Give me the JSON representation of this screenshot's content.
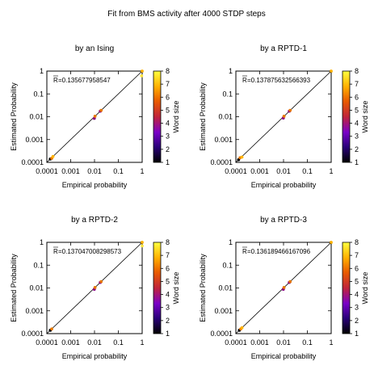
{
  "figure_title": "Fit from BMS activity after 4000 STDP steps",
  "chart_data": [
    {
      "type": "scatter",
      "title": "by an Ising",
      "xlabel": "Empirical probability",
      "ylabel": "Estimated Probability",
      "xscale": "log",
      "yscale": "log",
      "xlim": [
        0.0001,
        1
      ],
      "ylim": [
        0.0001,
        1
      ],
      "xticks": [
        "0.0001",
        "0.001",
        "0.01",
        "0.1",
        "1"
      ],
      "yticks": [
        "0.0001",
        "0.001",
        "0.01",
        "0.1",
        "1"
      ],
      "annotation_prefix": "R",
      "annotation_value": "=0.135677958547",
      "colorbar": {
        "label": "Word size",
        "min": 1,
        "max": 8,
        "ticks": [
          "1",
          "2",
          "3",
          "4",
          "5",
          "6",
          "7",
          "8"
        ]
      },
      "grid": false,
      "identity_line": true,
      "points": [
        {
          "x": 0.00014,
          "y": 0.00014,
          "size": 1
        },
        {
          "x": 0.00016,
          "y": 0.00015,
          "size": 6
        },
        {
          "x": 0.00018,
          "y": 0.00018,
          "size": 7
        },
        {
          "x": 0.0098,
          "y": 0.0085,
          "size": 3
        },
        {
          "x": 0.0105,
          "y": 0.0105,
          "size": 6
        },
        {
          "x": 0.0175,
          "y": 0.0175,
          "size": 3
        },
        {
          "x": 0.019,
          "y": 0.019,
          "size": 6
        },
        {
          "x": 0.97,
          "y": 0.97,
          "size": 1
        },
        {
          "x": 0.95,
          "y": 0.62,
          "size": 8
        },
        {
          "x": 1.0,
          "y": 1.0,
          "size": 7
        }
      ]
    },
    {
      "type": "scatter",
      "title": "by a RPTD-1",
      "xlabel": "Empirical probability",
      "ylabel": "Estimated Probability",
      "xscale": "log",
      "yscale": "log",
      "xlim": [
        0.0001,
        1
      ],
      "ylim": [
        0.0001,
        1
      ],
      "xticks": [
        "0.0001",
        "0.001",
        "0.01",
        "0.1",
        "1"
      ],
      "yticks": [
        "0.0001",
        "0.001",
        "0.01",
        "0.1",
        "1"
      ],
      "annotation_prefix": "R",
      "annotation_value": "=0.137875632566393",
      "colorbar": {
        "label": "Word size",
        "min": 1,
        "max": 8,
        "ticks": [
          "1",
          "2",
          "3",
          "4",
          "5",
          "6",
          "7",
          "8"
        ]
      },
      "grid": false,
      "identity_line": true,
      "points": [
        {
          "x": 0.00013,
          "y": 0.00013,
          "size": 1
        },
        {
          "x": 0.00015,
          "y": 0.00016,
          "size": 6
        },
        {
          "x": 0.00018,
          "y": 0.00017,
          "size": 7
        },
        {
          "x": 0.0098,
          "y": 0.0088,
          "size": 3
        },
        {
          "x": 0.0105,
          "y": 0.0105,
          "size": 6
        },
        {
          "x": 0.0175,
          "y": 0.0175,
          "size": 3
        },
        {
          "x": 0.019,
          "y": 0.019,
          "size": 6
        },
        {
          "x": 0.97,
          "y": 0.97,
          "size": 1
        },
        {
          "x": 1.0,
          "y": 1.0,
          "size": 7
        }
      ]
    },
    {
      "type": "scatter",
      "title": "by a RPTD-2",
      "xlabel": "Empirical probability",
      "ylabel": "Estimated Probability",
      "xscale": "log",
      "yscale": "log",
      "xlim": [
        0.0001,
        1
      ],
      "ylim": [
        0.0001,
        1
      ],
      "xticks": [
        "0.0001",
        "0.001",
        "0.01",
        "0.1",
        "1"
      ],
      "yticks": [
        "0.0001",
        "0.001",
        "0.01",
        "0.1",
        "1"
      ],
      "annotation_prefix": "R",
      "annotation_value": "=0.137047008298573",
      "colorbar": {
        "label": "Word size",
        "min": 1,
        "max": 8,
        "ticks": [
          "1",
          "2",
          "3",
          "4",
          "5",
          "6",
          "7",
          "8"
        ]
      },
      "grid": false,
      "identity_line": true,
      "points": [
        {
          "x": 0.00014,
          "y": 0.00014,
          "size": 1
        },
        {
          "x": 0.00016,
          "y": 0.00016,
          "size": 6
        },
        {
          "x": 0.0098,
          "y": 0.0088,
          "size": 3
        },
        {
          "x": 0.0105,
          "y": 0.0105,
          "size": 6
        },
        {
          "x": 0.0175,
          "y": 0.0175,
          "size": 3
        },
        {
          "x": 0.019,
          "y": 0.019,
          "size": 6
        },
        {
          "x": 0.97,
          "y": 0.97,
          "size": 1
        },
        {
          "x": 1.0,
          "y": 0.7,
          "size": 8
        },
        {
          "x": 1.0,
          "y": 1.0,
          "size": 7
        }
      ]
    },
    {
      "type": "scatter",
      "title": "by a RPTD-3",
      "xlabel": "Empirical probability",
      "ylabel": "Estimated Probability",
      "xscale": "log",
      "yscale": "log",
      "xlim": [
        0.0001,
        1
      ],
      "ylim": [
        0.0001,
        1
      ],
      "xticks": [
        "0.0001",
        "0.001",
        "0.01",
        "0.1",
        "1"
      ],
      "yticks": [
        "0.0001",
        "0.001",
        "0.01",
        "0.1",
        "1"
      ],
      "annotation_prefix": "R",
      "annotation_value": "=0.136189466167096",
      "colorbar": {
        "label": "Word size",
        "min": 1,
        "max": 8,
        "ticks": [
          "1",
          "2",
          "3",
          "4",
          "5",
          "6",
          "7",
          "8"
        ]
      },
      "grid": false,
      "identity_line": true,
      "points": [
        {
          "x": 0.00014,
          "y": 0.00014,
          "size": 1
        },
        {
          "x": 0.00016,
          "y": 0.00016,
          "size": 6
        },
        {
          "x": 0.00018,
          "y": 0.00018,
          "size": 7
        },
        {
          "x": 0.0098,
          "y": 0.0088,
          "size": 3
        },
        {
          "x": 0.0105,
          "y": 0.0105,
          "size": 6
        },
        {
          "x": 0.0175,
          "y": 0.0175,
          "size": 3
        },
        {
          "x": 0.019,
          "y": 0.019,
          "size": 6
        },
        {
          "x": 0.97,
          "y": 0.97,
          "size": 1
        },
        {
          "x": 1.0,
          "y": 1.0,
          "size": 7
        }
      ]
    }
  ]
}
